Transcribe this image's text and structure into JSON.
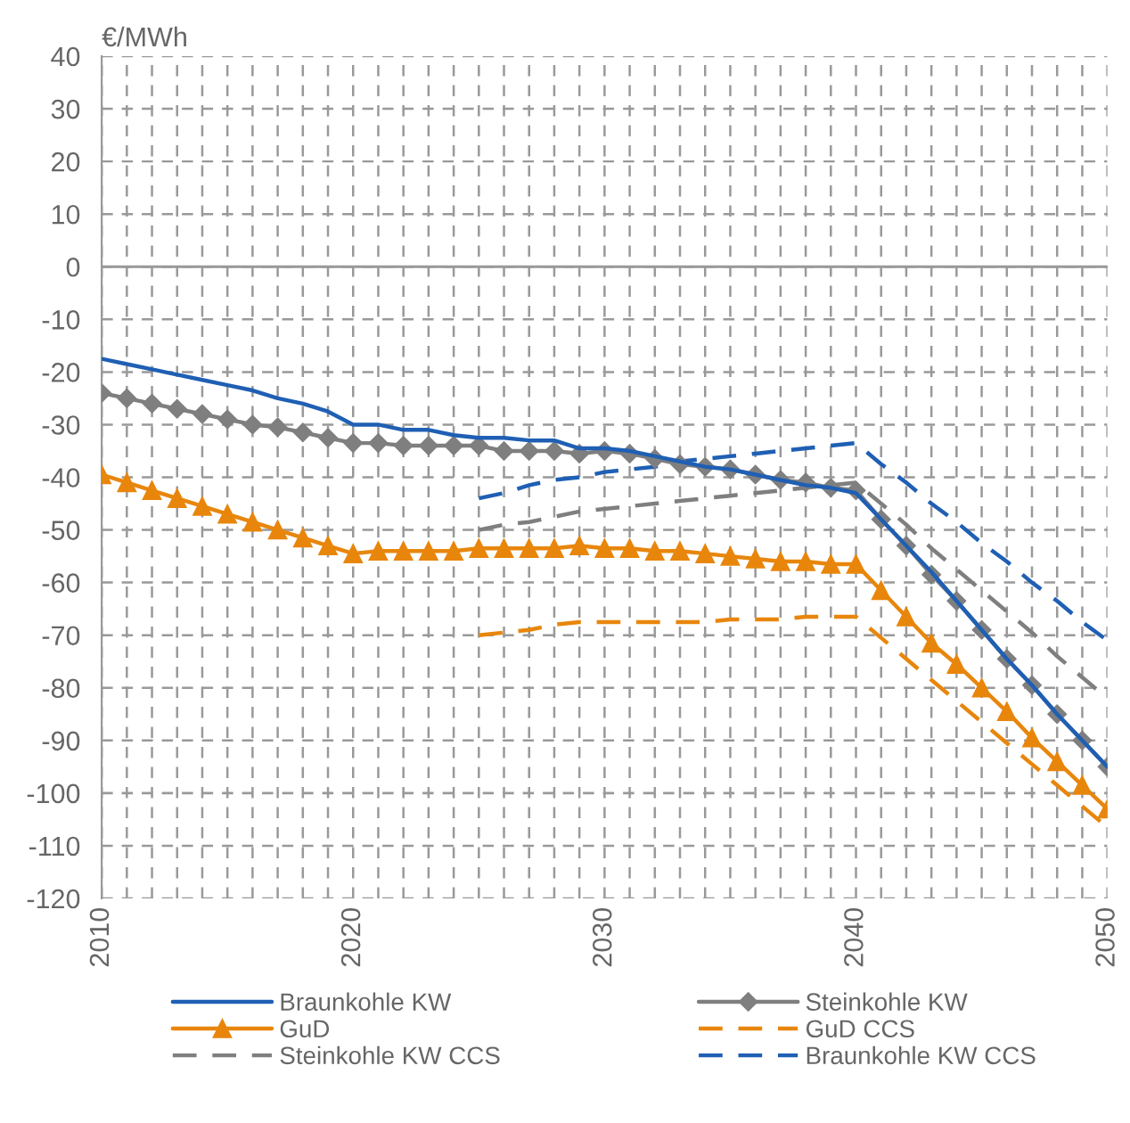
{
  "chart_data": {
    "type": "line",
    "ylabel": "€/MWh",
    "x": [
      2010,
      2011,
      2012,
      2013,
      2014,
      2015,
      2016,
      2017,
      2018,
      2019,
      2020,
      2021,
      2022,
      2023,
      2024,
      2025,
      2026,
      2027,
      2028,
      2029,
      2030,
      2031,
      2032,
      2033,
      2034,
      2035,
      2036,
      2037,
      2038,
      2039,
      2040,
      2041,
      2042,
      2043,
      2044,
      2045,
      2046,
      2047,
      2048,
      2049,
      2050
    ],
    "xlim": [
      2010,
      2050
    ],
    "ylim": [
      -120,
      40
    ],
    "xticks": [
      2010,
      {
        "value": 2011,
        "label": null
      },
      {
        "value": 2012,
        "label": null
      },
      {
        "value": 2013,
        "label": null
      },
      {
        "value": 2014,
        "label": null
      },
      {
        "value": 2015,
        "label": null
      },
      {
        "value": 2016,
        "label": null
      },
      {
        "value": 2017,
        "label": null
      },
      {
        "value": 2018,
        "label": null
      },
      {
        "value": 2019,
        "label": null
      },
      2020,
      {
        "value": 2021,
        "label": null
      },
      {
        "value": 2022,
        "label": null
      },
      {
        "value": 2023,
        "label": null
      },
      {
        "value": 2024,
        "label": null
      },
      {
        "value": 2025,
        "label": null
      },
      {
        "value": 2026,
        "label": null
      },
      {
        "value": 2027,
        "label": null
      },
      {
        "value": 2028,
        "label": null
      },
      {
        "value": 2029,
        "label": null
      },
      2030,
      {
        "value": 2031,
        "label": null
      },
      {
        "value": 2032,
        "label": null
      },
      {
        "value": 2033,
        "label": null
      },
      {
        "value": 2034,
        "label": null
      },
      {
        "value": 2035,
        "label": null
      },
      {
        "value": 2036,
        "label": null
      },
      {
        "value": 2037,
        "label": null
      },
      {
        "value": 2038,
        "label": null
      },
      {
        "value": 2039,
        "label": null
      },
      2040,
      {
        "value": 2041,
        "label": null
      },
      {
        "value": 2042,
        "label": null
      },
      {
        "value": 2043,
        "label": null
      },
      {
        "value": 2044,
        "label": null
      },
      {
        "value": 2045,
        "label": null
      },
      {
        "value": 2046,
        "label": null
      },
      {
        "value": 2047,
        "label": null
      },
      {
        "value": 2048,
        "label": null
      },
      {
        "value": 2049,
        "label": null
      },
      2050
    ],
    "yticks": [
      -120,
      -110,
      -100,
      -90,
      -80,
      -70,
      -60,
      -50,
      -40,
      -30,
      -20,
      -10,
      0,
      10,
      20,
      30,
      40
    ],
    "grid": true,
    "legend": "bottom",
    "series": [
      {
        "name": "Braunkohle KW",
        "color": "#1f5fb4",
        "marker": "none",
        "line_style": "solid",
        "values": [
          -17.5,
          -18.5,
          -19.5,
          -20.5,
          -21.5,
          -22.5,
          -23.5,
          -25,
          -26,
          -27.5,
          -30,
          -30,
          -31,
          -31,
          -32,
          -32.5,
          -32.5,
          -33,
          -33,
          -34.5,
          -34.5,
          -35,
          -36,
          -37,
          -38,
          -38.5,
          -39.5,
          -40.5,
          -41.5,
          -42,
          -43,
          -48,
          -53,
          -58,
          -63.5,
          -69,
          -74.5,
          -79.5,
          -85,
          -90,
          -95
        ]
      },
      {
        "name": "Steinkohle KW",
        "color": "#7f7f7f",
        "marker": "diamond",
        "line_style": "solid",
        "values": [
          -24,
          -25,
          -26,
          -27,
          -28,
          -29,
          -30,
          -30.5,
          -31.5,
          -32.5,
          -33.5,
          -33.5,
          -34,
          -34,
          -34,
          -34,
          -35,
          -35,
          -35,
          -35.5,
          -35,
          -35.5,
          -36.5,
          -37.5,
          -38,
          -38.5,
          -39.5,
          -40.5,
          -41,
          -42,
          -42.5,
          -48,
          -53,
          -58.5,
          -63.5,
          -69,
          -74.5,
          -79.5,
          -85,
          -90,
          -95
        ]
      },
      {
        "name": "GuD",
        "color": "#e8860c",
        "marker": "triangle",
        "line_style": "solid",
        "values": [
          -39.5,
          -41,
          -42.5,
          -44,
          -45.5,
          -47,
          -48.5,
          -50,
          -51.5,
          -53,
          -54.5,
          -54,
          -54,
          -54,
          -54,
          -53.5,
          -53.5,
          -53.5,
          -53.5,
          -53,
          -53.5,
          -53.5,
          -54,
          -54,
          -54.5,
          -55,
          -55.5,
          -56,
          -56,
          -56.5,
          -56.5,
          -61.5,
          -66.5,
          -71.5,
          -75.5,
          -80,
          -84.5,
          -89.5,
          -94,
          -98.5,
          -103
        ]
      },
      {
        "name": "GuD CCS",
        "color": "#e8860c",
        "marker": "none",
        "line_style": "dashed",
        "values": [
          null,
          null,
          null,
          null,
          null,
          null,
          null,
          null,
          null,
          null,
          null,
          null,
          null,
          null,
          null,
          -70,
          -69.5,
          -69,
          -68,
          -67.5,
          -67.5,
          -67.5,
          -67.5,
          -67.5,
          -67.5,
          -67,
          -67,
          -67,
          -66.5,
          -66.5,
          -66.5,
          -70.5,
          -74.5,
          -78.5,
          -82.5,
          -86.5,
          -90.5,
          -94.5,
          -98.5,
          -102.5,
          -106.5
        ]
      },
      {
        "name": "Steinkohle KW CCS",
        "color": "#7f7f7f",
        "marker": "none",
        "line_style": "dashed",
        "values": [
          null,
          null,
          null,
          null,
          null,
          null,
          null,
          null,
          null,
          null,
          null,
          null,
          null,
          null,
          null,
          -50,
          -49,
          -48.5,
          -47.5,
          -46.5,
          -46,
          -45.5,
          -45,
          -44.5,
          -44,
          -43.5,
          -43,
          -42.5,
          -42,
          -41.5,
          -41,
          -45,
          -49,
          -53.5,
          -57.5,
          -61.5,
          -65.5,
          -69.5,
          -74,
          -78,
          -82
        ]
      },
      {
        "name": "Braunkohle KW CCS",
        "color": "#1f5fb4",
        "marker": "none",
        "line_style": "dashed",
        "values": [
          null,
          null,
          null,
          null,
          null,
          null,
          null,
          null,
          null,
          null,
          null,
          null,
          null,
          null,
          null,
          -44,
          -43,
          -41.5,
          -40.5,
          -40,
          -39,
          -38.5,
          -38,
          -37,
          -36.5,
          -36,
          -35.5,
          -35,
          -34.5,
          -34,
          -33.5,
          -37.5,
          -41,
          -45,
          -48.5,
          -52.5,
          -56,
          -60,
          -63.5,
          -67.5,
          -71
        ]
      }
    ]
  }
}
